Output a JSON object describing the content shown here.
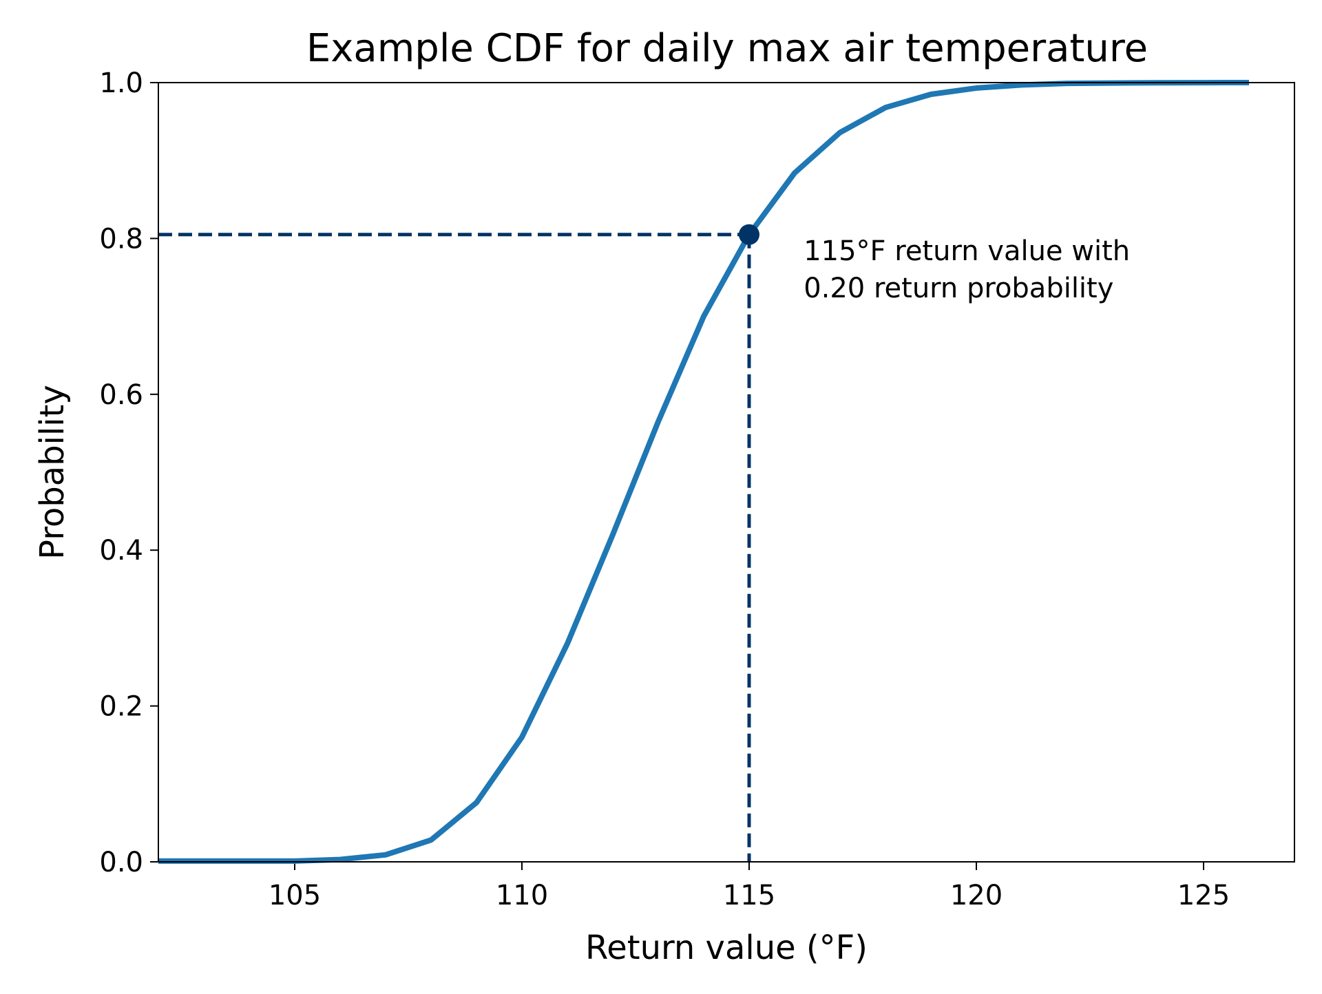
{
  "chart_data": {
    "type": "line",
    "title": "Example CDF for daily max air temperature",
    "xlabel": "Return value (°F)",
    "ylabel": "Probability",
    "xlim": [
      102,
      127
    ],
    "ylim": [
      0.0,
      1.0
    ],
    "x_ticks": [
      "105",
      "110",
      "115",
      "120",
      "125"
    ],
    "y_ticks": [
      "0.0",
      "0.2",
      "0.4",
      "0.6",
      "0.8",
      "1.0"
    ],
    "grid": false,
    "series": [
      {
        "color": "#1f77b4",
        "x": [
          102,
          103,
          104,
          105,
          106,
          107,
          108,
          109,
          110,
          111,
          112,
          113,
          114,
          115,
          116,
          117,
          118,
          119,
          120,
          121,
          122,
          123,
          124,
          125,
          126
        ],
        "y": [
          0.001,
          0.001,
          0.001,
          0.001,
          0.003,
          0.009,
          0.028,
          0.076,
          0.16,
          0.28,
          0.42,
          0.565,
          0.7,
          0.805,
          0.884,
          0.936,
          0.968,
          0.985,
          0.993,
          0.997,
          0.999,
          0.9995,
          0.9998,
          0.9999,
          1.0
        ]
      }
    ],
    "highlight": {
      "x": 115,
      "y": 0.805,
      "color": "#003366",
      "line_style": "dashed"
    },
    "annotation": {
      "lines": [
        "115°F return value with",
        "0.20 return probability"
      ]
    }
  }
}
